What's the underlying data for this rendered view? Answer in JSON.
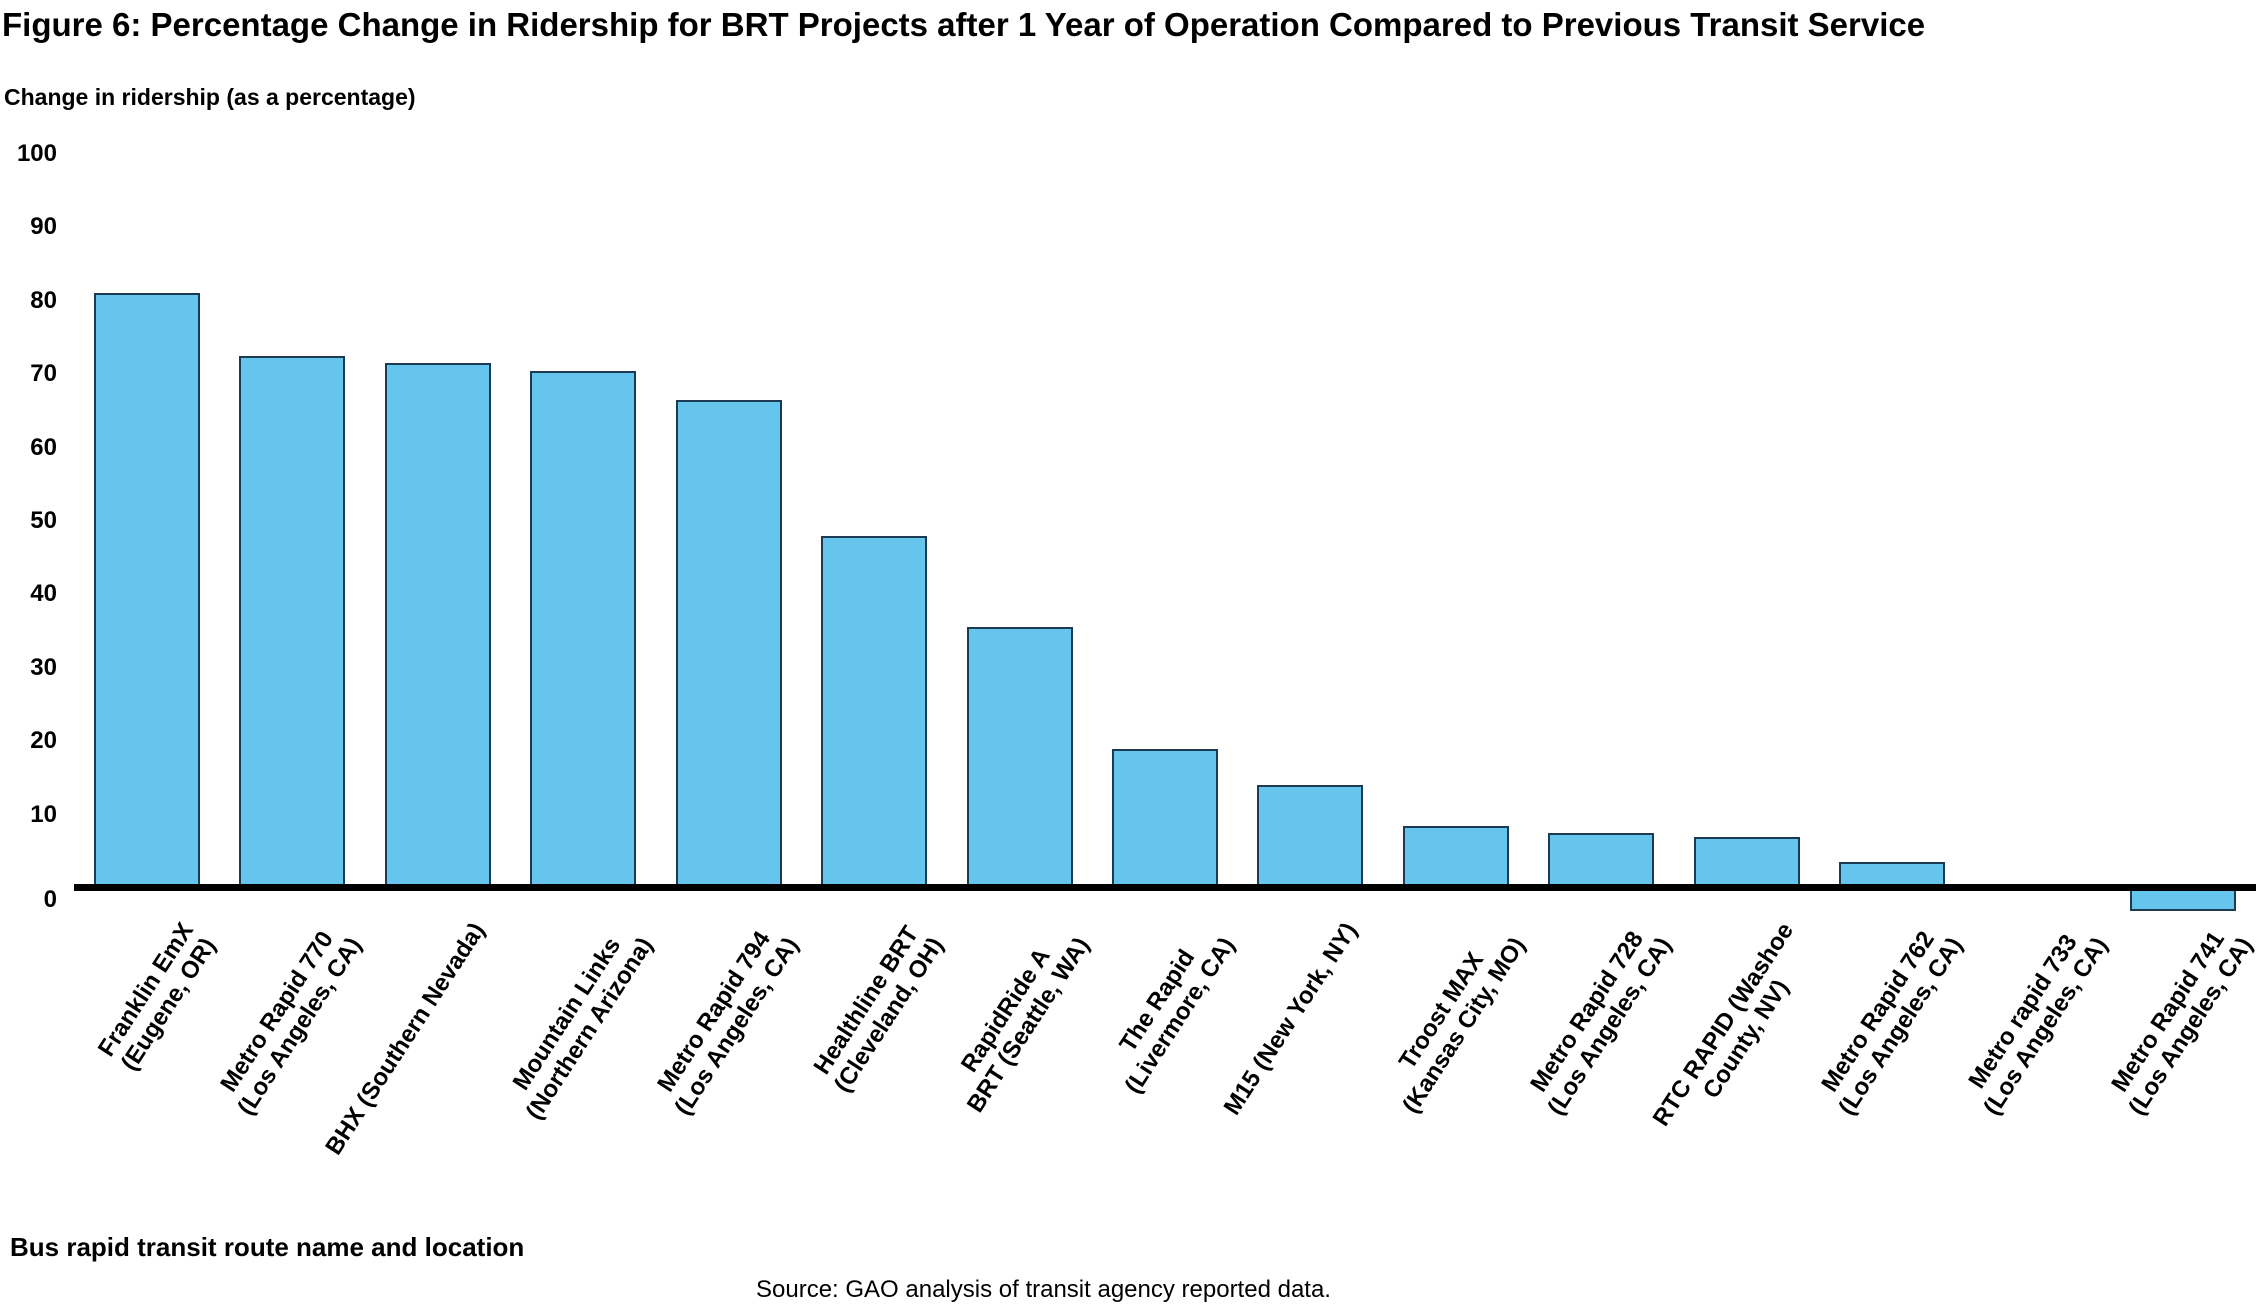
{
  "figure": {
    "title": "Figure 6: Percentage Change in Ridership for BRT Projects after 1 Year of Operation Compared to Previous Transit Service",
    "source": "Source: GAO analysis of transit agency reported data."
  },
  "chart_data": {
    "type": "bar",
    "title": "Figure 6: Percentage Change in Ridership for BRT Projects after 1 Year of Operation Compared to Previous Transit Service",
    "ylabel": "Change in ridership (as a percentage)",
    "xlabel": "Bus rapid transit route name and location",
    "ylim": [
      0,
      100
    ],
    "yticks": [
      0,
      10,
      20,
      30,
      40,
      50,
      60,
      70,
      80,
      90,
      100
    ],
    "grid": false,
    "legend": "none",
    "categories": [
      "Franklin EmX\n(Eugene, OR)",
      "Metro Rapid 770\n(Los Angeles, CA)",
      "BHX (Southern Nevada)",
      "Mountain Links\n(Northern Arizona)",
      "Metro Rapid 794\n(Los Angeles, CA)",
      "Healthline BRT\n(Cleveland, OH)",
      "RapidRide A\nBRT (Seattle, WA)",
      "The Rapid\n(Livermore, CA)",
      "M15 (New York, NY)",
      "Troost MAX\n(Kansas City, MO)",
      "Metro Rapid 728\n(Los Angeles, CA)",
      "RTC RAPID (Washoe\nCounty, NV)",
      "Metro Rapid 762\n(Los Angeles, CA)",
      "Metro rapid 733\n(Los Angeles, CA)",
      "Metro Rapid 741\n(Los Angeles, CA)"
    ],
    "values": [
      81,
      72.5,
      71.5,
      70.5,
      66.5,
      48,
      35.5,
      19,
      14,
      8.5,
      7.5,
      7,
      3.5,
      0,
      -2
    ],
    "colors": {
      "bar_fill": "#66C5EC",
      "bar_border": "#1C3A52",
      "axis_line": "#000000",
      "text": "#000000"
    }
  }
}
